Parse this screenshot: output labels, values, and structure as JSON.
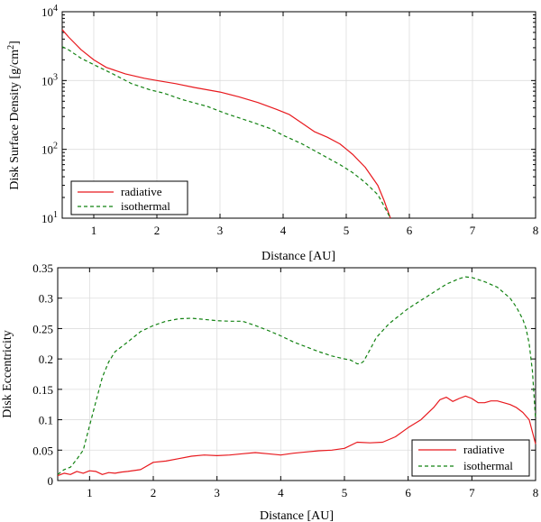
{
  "chart_data": [
    {
      "type": "line",
      "yscale": "log",
      "xlabel": "Distance [AU]",
      "ylabel_base": "Disk Surface Density [g/cm",
      "ylabel_sup": "2",
      "ylabel_end": "]",
      "xlim": [
        0.5,
        8
      ],
      "ylim": [
        10,
        10000
      ],
      "xticks": [
        1,
        2,
        3,
        4,
        5,
        6,
        7,
        8
      ],
      "xtick_labels": [
        "1",
        "2",
        "3",
        "4",
        "5",
        "6",
        "7",
        "8"
      ],
      "yticks": [
        10,
        100,
        1000,
        10000
      ],
      "ytick_bases": [
        "10",
        "10",
        "10",
        "10"
      ],
      "ytick_exps": [
        "1",
        "2",
        "3",
        "4"
      ],
      "legend_position": "bottom-left",
      "series": [
        {
          "name": "radiative",
          "color": "#e8191e",
          "dash": "",
          "x": [
            0.5,
            0.6,
            0.8,
            1.0,
            1.2,
            1.5,
            1.8,
            2.0,
            2.3,
            2.6,
            3.0,
            3.3,
            3.6,
            3.9,
            4.1,
            4.3,
            4.5,
            4.7,
            4.9,
            5.1,
            5.3,
            5.5,
            5.6,
            5.7
          ],
          "values": [
            5500,
            4300,
            2800,
            2000,
            1550,
            1250,
            1080,
            1000,
            900,
            790,
            680,
            580,
            480,
            380,
            320,
            240,
            180,
            150,
            120,
            85,
            55,
            30,
            18,
            10
          ]
        },
        {
          "name": "isothermal",
          "color": "#128212",
          "dash": "4,3",
          "x": [
            0.5,
            0.6,
            0.8,
            1.0,
            1.3,
            1.6,
            1.9,
            2.1,
            2.4,
            2.8,
            3.1,
            3.5,
            3.8,
            4.0,
            4.3,
            4.6,
            4.9,
            5.1,
            5.3,
            5.5,
            5.6,
            5.7
          ],
          "values": [
            3100,
            2800,
            2100,
            1700,
            1250,
            900,
            730,
            660,
            530,
            420,
            330,
            250,
            200,
            160,
            120,
            85,
            60,
            46,
            33,
            22,
            15,
            10
          ]
        }
      ]
    },
    {
      "type": "line",
      "yscale": "linear",
      "xlabel": "Distance [AU]",
      "ylabel": "Disk Eccentricity",
      "xlim": [
        0.5,
        8
      ],
      "ylim": [
        0,
        0.35
      ],
      "xticks": [
        1,
        2,
        3,
        4,
        5,
        6,
        7,
        8
      ],
      "xtick_labels": [
        "1",
        "2",
        "3",
        "4",
        "5",
        "6",
        "7",
        "8"
      ],
      "yticks": [
        0,
        0.05,
        0.1,
        0.15,
        0.2,
        0.25,
        0.3,
        0.35
      ],
      "ytick_labels": [
        "0",
        "0.05",
        "0.1",
        "0.15",
        "0.2",
        "0.25",
        "0.3",
        "0.35"
      ],
      "legend_position": "bottom-right",
      "series": [
        {
          "name": "radiative",
          "color": "#e8191e",
          "dash": "",
          "x": [
            0.5,
            0.6,
            0.7,
            0.8,
            0.9,
            1.0,
            1.1,
            1.2,
            1.3,
            1.4,
            1.5,
            1.6,
            1.8,
            2.0,
            2.2,
            2.4,
            2.6,
            2.8,
            3.0,
            3.2,
            3.4,
            3.6,
            3.8,
            4.0,
            4.2,
            4.4,
            4.6,
            4.8,
            5.0,
            5.2,
            5.4,
            5.6,
            5.8,
            6.0,
            6.2,
            6.4,
            6.5,
            6.6,
            6.7,
            6.8,
            6.9,
            7.0,
            7.1,
            7.2,
            7.3,
            7.4,
            7.5,
            7.6,
            7.7,
            7.8,
            7.9,
            7.95,
            8.0
          ],
          "values": [
            0.008,
            0.012,
            0.01,
            0.015,
            0.012,
            0.016,
            0.015,
            0.01,
            0.013,
            0.012,
            0.014,
            0.015,
            0.018,
            0.03,
            0.032,
            0.036,
            0.04,
            0.042,
            0.041,
            0.042,
            0.044,
            0.046,
            0.044,
            0.042,
            0.045,
            0.047,
            0.049,
            0.05,
            0.053,
            0.063,
            0.062,
            0.063,
            0.072,
            0.087,
            0.1,
            0.12,
            0.133,
            0.137,
            0.13,
            0.135,
            0.139,
            0.135,
            0.128,
            0.128,
            0.131,
            0.131,
            0.128,
            0.125,
            0.12,
            0.112,
            0.1,
            0.08,
            0.06
          ]
        },
        {
          "name": "isothermal",
          "color": "#128212",
          "dash": "4,3",
          "x": [
            0.5,
            0.6,
            0.7,
            0.8,
            0.9,
            1.0,
            1.1,
            1.2,
            1.3,
            1.4,
            1.6,
            1.8,
            2.0,
            2.2,
            2.4,
            2.6,
            2.8,
            3.0,
            3.2,
            3.4,
            3.6,
            3.8,
            4.0,
            4.2,
            4.4,
            4.6,
            4.8,
            5.0,
            5.1,
            5.2,
            5.25,
            5.3,
            5.4,
            5.5,
            5.7,
            6.0,
            6.3,
            6.6,
            6.8,
            6.9,
            7.0,
            7.2,
            7.4,
            7.6,
            7.7,
            7.8,
            7.85,
            7.9,
            7.95,
            8.0
          ],
          "values": [
            0.01,
            0.018,
            0.022,
            0.035,
            0.05,
            0.09,
            0.13,
            0.17,
            0.195,
            0.212,
            0.228,
            0.245,
            0.255,
            0.262,
            0.266,
            0.267,
            0.265,
            0.263,
            0.262,
            0.262,
            0.255,
            0.247,
            0.238,
            0.228,
            0.22,
            0.212,
            0.205,
            0.2,
            0.198,
            0.192,
            0.192,
            0.196,
            0.215,
            0.235,
            0.258,
            0.283,
            0.303,
            0.323,
            0.332,
            0.335,
            0.334,
            0.327,
            0.318,
            0.3,
            0.285,
            0.265,
            0.25,
            0.225,
            0.18,
            0.1
          ]
        }
      ]
    }
  ]
}
